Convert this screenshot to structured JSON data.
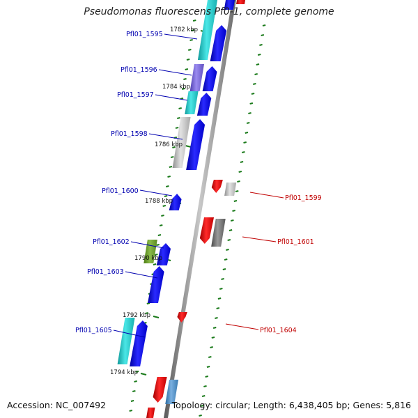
{
  "title": "Pseudomonas fluorescens Pf0-1, complete genome",
  "accession": "Accession: NC_007492",
  "topology": "Topology: circular; Length: 6,438,405 bp; Genes: 5,816",
  "colors": {
    "backbone": "#8a8a8a",
    "tick": "#1a7a1a",
    "label_forward": "#0000b0",
    "label_reverse": "#c00000",
    "kbp_text": "#111111"
  },
  "kbp_labels": [
    {
      "kbp": 1782,
      "text": "1782 kbp"
    },
    {
      "kbp": 1784,
      "text": "1784 kbp"
    },
    {
      "kbp": 1786,
      "text": "1786 kbp"
    },
    {
      "kbp": 1788,
      "text": "1788 kbp"
    },
    {
      "kbp": 1790,
      "text": "1790 kbp"
    },
    {
      "kbp": 1792,
      "text": "1792 kbp"
    },
    {
      "kbp": 1794,
      "text": "1794 kbp"
    }
  ],
  "gene_labels": [
    {
      "text": "Pfl01_1595",
      "strand": "forward"
    },
    {
      "text": "Pfl01_1596",
      "strand": "forward"
    },
    {
      "text": "Pfl01_1597",
      "strand": "forward"
    },
    {
      "text": "Pfl01_1598",
      "strand": "forward"
    },
    {
      "text": "Pfl01_1600",
      "strand": "forward"
    },
    {
      "text": "Pfl01_1602",
      "strand": "forward"
    },
    {
      "text": "Pfl01_1603",
      "strand": "forward"
    },
    {
      "text": "Pfl01_1605",
      "strand": "forward"
    },
    {
      "text": "Pfl01_1599",
      "strand": "reverse"
    },
    {
      "text": "Pfl01_1601",
      "strand": "reverse"
    },
    {
      "text": "Pfl01_1604",
      "strand": "reverse"
    }
  ],
  "cog_colors": {
    "cyan": "#2ac8c8",
    "purple": "#7060d0",
    "silver": "#b8b8b8",
    "olive": "#6a9a2a",
    "gray": "#707070",
    "steel": "#4a8ac0",
    "blue": "#0000f0",
    "red": "#f00000"
  }
}
